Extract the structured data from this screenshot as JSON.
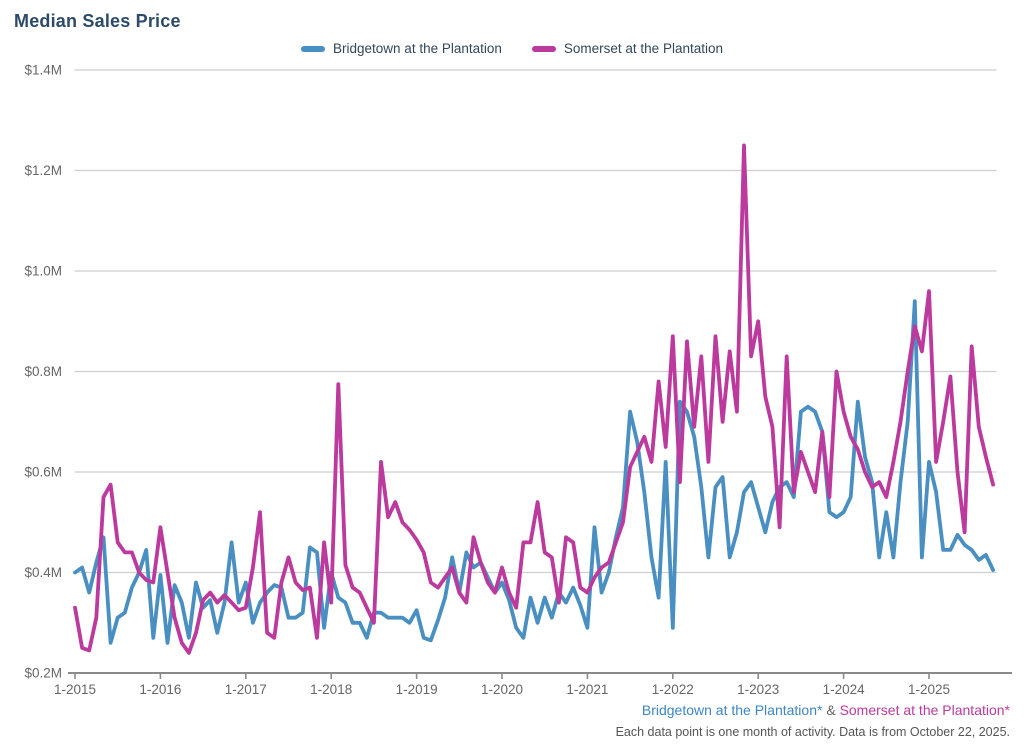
{
  "title": "Median Sales Price",
  "legend": {
    "items": [
      {
        "label": "Bridgetown at the Plantation",
        "color": "#4a8fc2"
      },
      {
        "label": "Somerset at the Plantation",
        "color": "#bc3a9e"
      }
    ]
  },
  "footer": {
    "series_link_1": "Bridgetown at the Plantation*",
    "separator": " & ",
    "series_link_2": "Somerset at the Plantation*",
    "caption": "Each data point is one month of activity. Data is from October 22, 2025."
  },
  "chart_data": {
    "type": "line",
    "title": "Median Sales Price",
    "unit": "$M",
    "x_start": "1-2015",
    "x_end": "10-2025",
    "points_per_year": 12,
    "x_tick_labels": [
      "1-2015",
      "1-2016",
      "1-2017",
      "1-2018",
      "1-2019",
      "1-2020",
      "1-2021",
      "1-2022",
      "1-2023",
      "1-2024",
      "1-2025"
    ],
    "y_tick_labels": [
      "$1.4M",
      "$1.2M",
      "$1.0M",
      "$0.8M",
      "$0.6M",
      "$0.4M",
      "$0.2M"
    ],
    "ylim": [
      0.2,
      1.4
    ],
    "grid": true,
    "legend_position": "top",
    "axis_color": "#8a8a8a",
    "grid_color": "#cfcfcf",
    "tick_label_color": "#666666",
    "series": [
      {
        "name": "Bridgetown at the Plantation",
        "color": "#4a8fc2",
        "values": [
          0.4,
          0.41,
          0.36,
          0.42,
          0.47,
          0.26,
          0.31,
          0.32,
          0.37,
          0.4,
          0.445,
          0.27,
          0.395,
          0.26,
          0.375,
          0.34,
          0.27,
          0.38,
          0.33,
          0.345,
          0.28,
          0.34,
          0.46,
          0.34,
          0.38,
          0.3,
          0.34,
          0.36,
          0.375,
          0.37,
          0.31,
          0.31,
          0.32,
          0.45,
          0.44,
          0.29,
          0.4,
          0.35,
          0.34,
          0.3,
          0.3,
          0.27,
          0.32,
          0.32,
          0.31,
          0.31,
          0.31,
          0.3,
          0.325,
          0.27,
          0.265,
          0.305,
          0.35,
          0.43,
          0.36,
          0.44,
          0.41,
          0.42,
          0.39,
          0.36,
          0.38,
          0.345,
          0.29,
          0.27,
          0.35,
          0.3,
          0.35,
          0.31,
          0.36,
          0.34,
          0.37,
          0.335,
          0.29,
          0.49,
          0.36,
          0.4,
          0.47,
          0.53,
          0.72,
          0.66,
          0.56,
          0.43,
          0.35,
          0.62,
          0.29,
          0.74,
          0.72,
          0.67,
          0.57,
          0.43,
          0.57,
          0.59,
          0.43,
          0.48,
          0.56,
          0.58,
          0.53,
          0.48,
          0.54,
          0.57,
          0.58,
          0.55,
          0.72,
          0.73,
          0.72,
          0.68,
          0.52,
          0.51,
          0.52,
          0.55,
          0.74,
          0.63,
          0.58,
          0.43,
          0.52,
          0.43,
          0.58,
          0.7,
          0.94,
          0.43,
          0.62,
          0.56,
          0.445,
          0.445,
          0.475,
          0.455,
          0.445,
          0.425,
          0.435,
          0.405
        ]
      },
      {
        "name": "Somerset at the Plantation",
        "color": "#bc3a9e",
        "values": [
          0.33,
          0.25,
          0.245,
          0.31,
          0.55,
          0.575,
          0.46,
          0.44,
          0.44,
          0.4,
          0.385,
          0.38,
          0.49,
          0.4,
          0.31,
          0.26,
          0.24,
          0.28,
          0.345,
          0.36,
          0.34,
          0.355,
          0.34,
          0.325,
          0.33,
          0.41,
          0.52,
          0.28,
          0.27,
          0.38,
          0.43,
          0.38,
          0.365,
          0.37,
          0.27,
          0.46,
          0.34,
          0.775,
          0.415,
          0.37,
          0.36,
          0.33,
          0.3,
          0.62,
          0.51,
          0.54,
          0.5,
          0.485,
          0.465,
          0.44,
          0.38,
          0.37,
          0.39,
          0.41,
          0.36,
          0.34,
          0.47,
          0.42,
          0.38,
          0.36,
          0.41,
          0.36,
          0.33,
          0.46,
          0.46,
          0.54,
          0.44,
          0.43,
          0.34,
          0.47,
          0.46,
          0.37,
          0.36,
          0.39,
          0.41,
          0.42,
          0.46,
          0.5,
          0.61,
          0.64,
          0.67,
          0.62,
          0.78,
          0.65,
          0.87,
          0.58,
          0.86,
          0.69,
          0.83,
          0.62,
          0.87,
          0.7,
          0.84,
          0.72,
          1.25,
          0.83,
          0.9,
          0.75,
          0.69,
          0.49,
          0.83,
          0.56,
          0.64,
          0.6,
          0.56,
          0.68,
          0.55,
          0.8,
          0.72,
          0.67,
          0.645,
          0.6,
          0.57,
          0.58,
          0.55,
          0.62,
          0.7,
          0.8,
          0.89,
          0.84,
          0.96,
          0.62,
          0.7,
          0.79,
          0.6,
          0.48,
          0.85,
          0.69,
          0.63,
          0.575
        ]
      }
    ]
  }
}
